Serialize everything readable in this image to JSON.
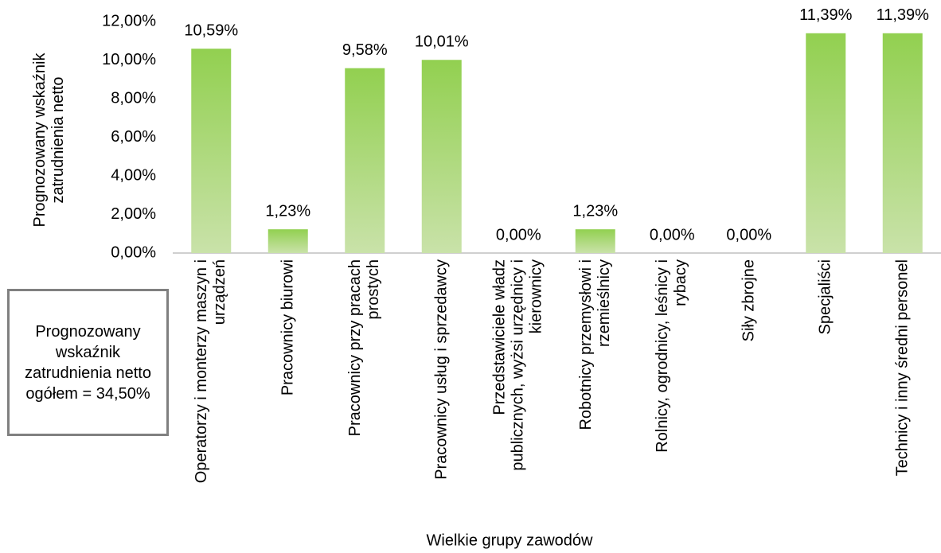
{
  "chart_data": {
    "type": "bar",
    "y_axis_label": "Prognozowany wskaźnik zatrudnienia netto",
    "x_axis_label": "Wielkie grupy zawodów",
    "annotation": "Prognozowany wskaźnik zatrudnienia netto ogółem = 34,50%",
    "categories": [
      "Operatorzy i monterzy maszyn i urządzeń",
      "Pracownicy biurowi",
      "Pracownicy przy pracach prostych",
      "Pracownicy usług i sprzedawcy",
      "Przedstawiciele władz publicznych, wyżsi urzędnicy i kierownicy",
      "Robotnicy przemysłowi i rzemieślnicy",
      "Rolnicy, ogrodnicy, leśnicy i rybacy",
      "Siły zbrojne",
      "Specjaliści",
      "Technicy i inny średni personel"
    ],
    "values": [
      10.59,
      1.23,
      9.58,
      10.01,
      0,
      1.23,
      0,
      0,
      11.39,
      11.39
    ],
    "value_labels": [
      "10,59%",
      "1,23%",
      "9,58%",
      "10,01%",
      "0,00%",
      "1,23%",
      "0,00%",
      "0,00%",
      "11,39%",
      "11,39%"
    ],
    "color": "#92d050",
    "ylim": [
      0,
      12
    ],
    "yticks": [
      {
        "value": 0,
        "label": "0,00%"
      },
      {
        "value": 2,
        "label": "2,00%"
      },
      {
        "value": 4,
        "label": "4,00%"
      },
      {
        "value": 6,
        "label": "6,00%"
      },
      {
        "value": 8,
        "label": "8,00%"
      },
      {
        "value": 10,
        "label": "10,00%"
      },
      {
        "value": 12,
        "label": "12,00%"
      }
    ],
    "grid": false
  }
}
